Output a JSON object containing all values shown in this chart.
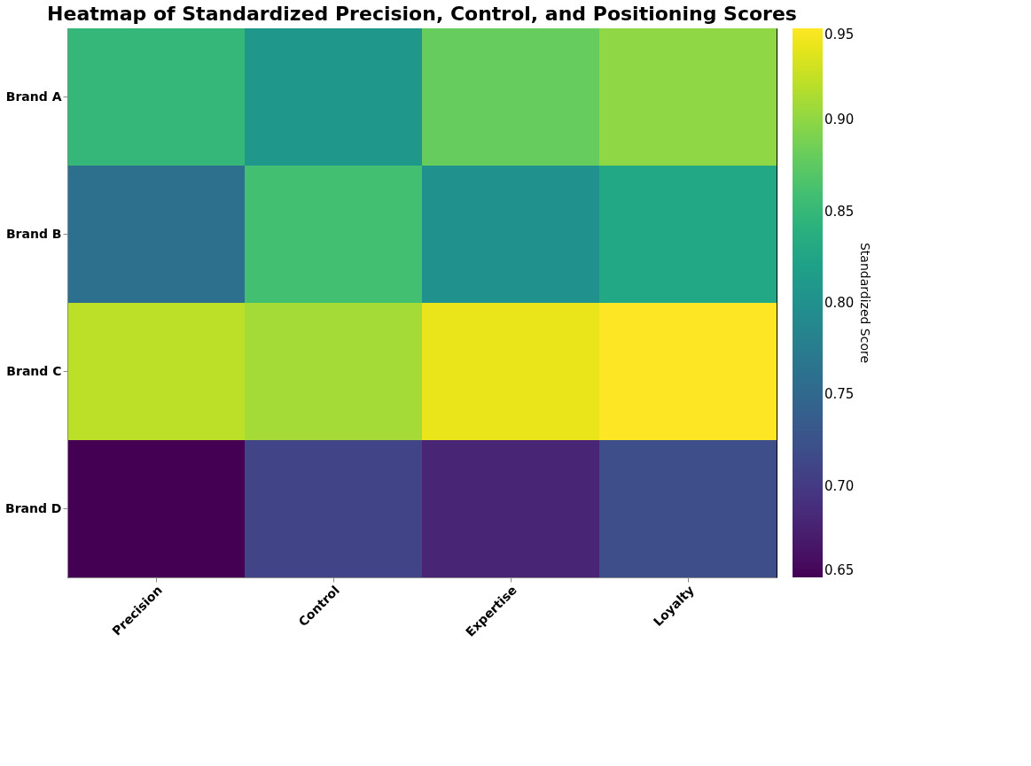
{
  "chart_data": {
    "type": "heatmap",
    "title": "Heatmap of Standardized Precision, Control, and Positioning Scores",
    "categories": [
      "Precision",
      "Control",
      "Expertise",
      "Loyalty"
    ],
    "y_categories": [
      "Brand A",
      "Brand B",
      "Brand C",
      "Brand D"
    ],
    "cells": [
      [
        0.85,
        0.81,
        0.88,
        0.9
      ],
      [
        0.76,
        0.86,
        0.8,
        0.83
      ],
      [
        0.92,
        0.91,
        0.94,
        0.95
      ],
      [
        0.65,
        0.71,
        0.68,
        0.72
      ]
    ],
    "clim": [
      0.65,
      0.95
    ],
    "cticks": [
      0.65,
      {
        "value": 0.7,
        "label": "0.70"
      },
      0.75,
      {
        "value": 0.8,
        "label": "0.80"
      },
      0.85,
      {
        "value": 0.9,
        "label": "0.90"
      },
      0.95
    ],
    "clabel": "Standardized Score"
  }
}
